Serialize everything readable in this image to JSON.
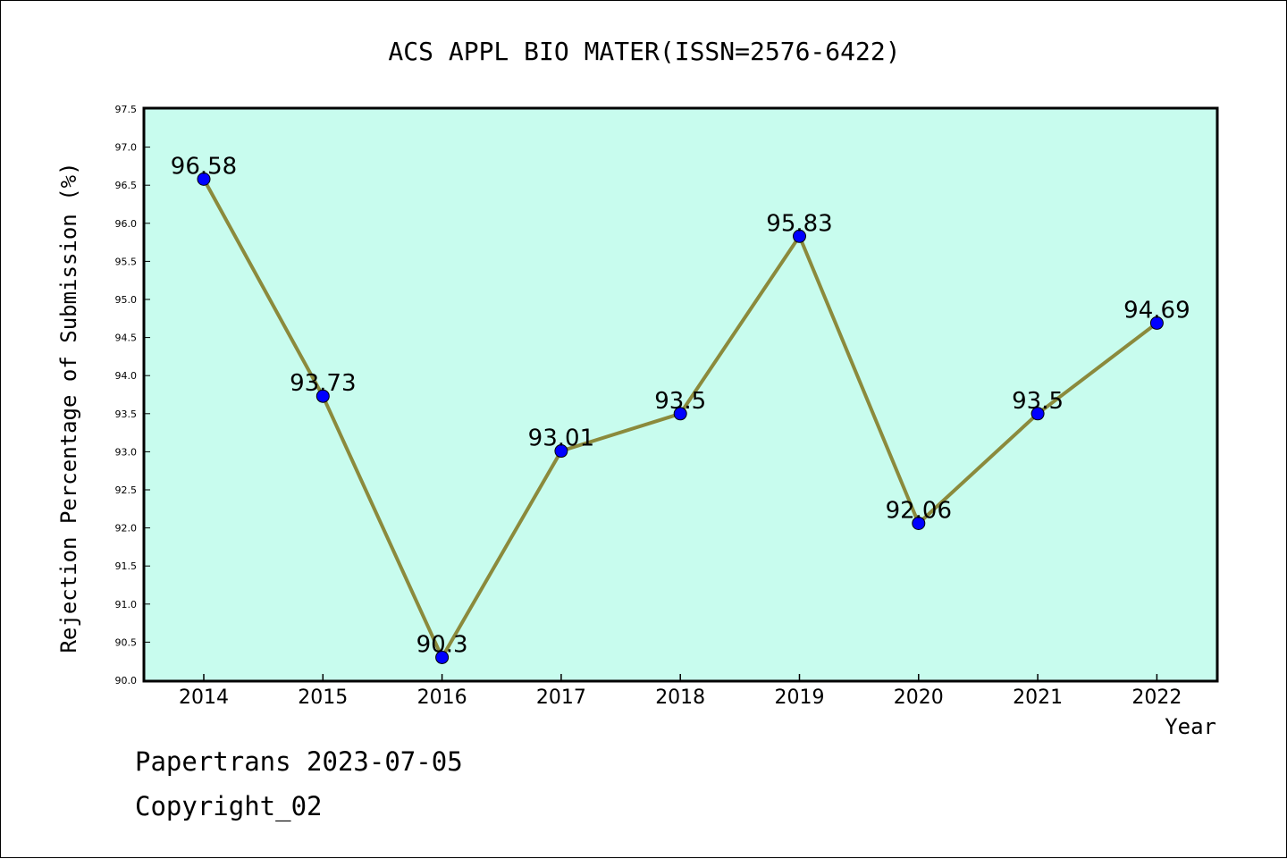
{
  "chart_data": {
    "type": "line",
    "title": "ACS APPL BIO MATER(ISSN=2576-6422)",
    "xlabel": "Year",
    "ylabel": "Rejection Percentage of Submission (%)",
    "categories": [
      "2014",
      "2015",
      "2016",
      "2017",
      "2018",
      "2019",
      "2020",
      "2021",
      "2022"
    ],
    "values": [
      96.58,
      93.73,
      90.3,
      93.01,
      93.5,
      95.83,
      92.06,
      93.5,
      94.69
    ],
    "value_labels": [
      "96.58",
      "93.73",
      "90.3",
      "93.01",
      "93.5",
      "95.83",
      "92.06",
      "93.5",
      "94.69"
    ],
    "ylim": [
      90.0,
      97.5
    ],
    "yticks": [
      "90.0",
      "90.5",
      "91.0",
      "91.5",
      "92.0",
      "92.5",
      "93.0",
      "93.5",
      "94.0",
      "94.5",
      "95.0",
      "95.5",
      "96.0",
      "96.5",
      "97.0",
      "97.5"
    ],
    "grid": false,
    "colors": {
      "plot_background": "#c8fcee",
      "line": "#8b8a3c",
      "marker": "#0000ff"
    }
  },
  "footer": {
    "line1": "Papertrans 2023-07-05",
    "line2": "Copyright_02"
  }
}
